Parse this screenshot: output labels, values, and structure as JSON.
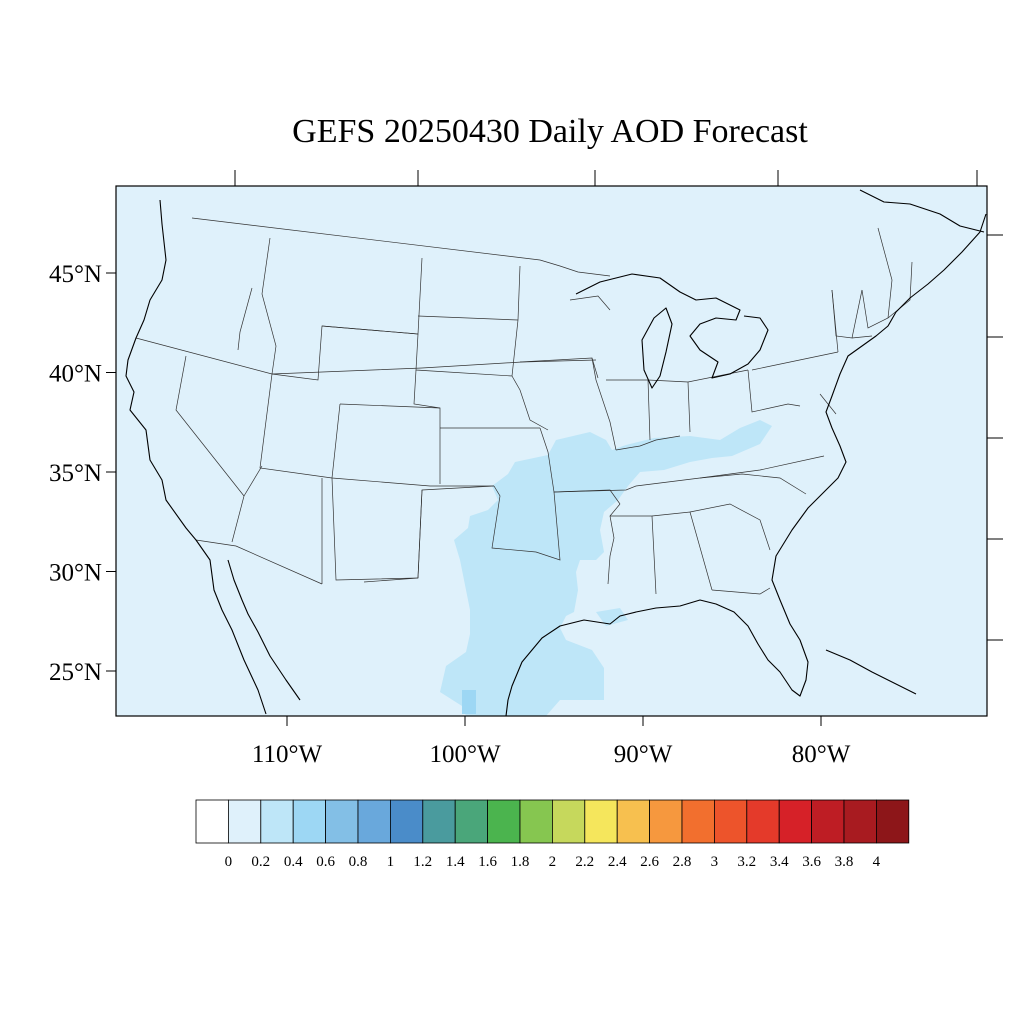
{
  "title": "GEFS 20250430 Daily AOD Forecast",
  "map": {
    "background_color": "#dff1fb",
    "lon_range": [
      -121,
      -72
    ],
    "lat_range": [
      22.8,
      49.5
    ],
    "lat_ticks": [
      {
        "value": 45,
        "label": "45°N"
      },
      {
        "value": 40,
        "label": "40°N"
      },
      {
        "value": 35,
        "label": "35°N"
      },
      {
        "value": 30,
        "label": "30°N"
      },
      {
        "value": 25,
        "label": "25°N"
      }
    ],
    "lon_ticks": [
      {
        "value": -110,
        "label": "110°W"
      },
      {
        "value": -100,
        "label": "100°W"
      },
      {
        "value": -90,
        "label": "90°W"
      },
      {
        "value": -80,
        "label": "80°W"
      }
    ]
  },
  "colorbar": {
    "colors": [
      "#ffffff",
      "#dff1fb",
      "#bee6f8",
      "#9dd7f4",
      "#83bfe6",
      "#69a8dc",
      "#4a8cc9",
      "#4a9b9e",
      "#4aa67a",
      "#4bb44e",
      "#86c650",
      "#c6d85c",
      "#f5e65c",
      "#f7c04f",
      "#f6983e",
      "#f26f2e",
      "#ed542b",
      "#e43a2a",
      "#d62128",
      "#be1d24",
      "#a81b20",
      "#8d1619"
    ],
    "labels": [
      "0",
      "0.2",
      "0.4",
      "0.6",
      "0.8",
      "1",
      "1.2",
      "1.4",
      "1.6",
      "1.8",
      "2",
      "2.2",
      "2.4",
      "2.6",
      "2.8",
      "3",
      "3.2",
      "3.4",
      "3.6",
      "3.8",
      "4"
    ]
  }
}
